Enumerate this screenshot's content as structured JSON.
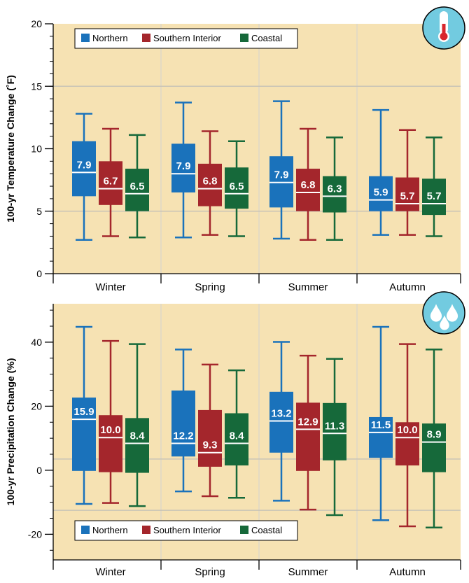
{
  "colors": {
    "northern": "#1a72bb",
    "southern": "#a4262c",
    "coastal": "#16693a",
    "plot_bg": "#f6e2b3",
    "icon_bg": "#72cbe0"
  },
  "icons": [
    "thermometer-icon",
    "raindrops-icon"
  ],
  "chart_data": [
    {
      "type": "box",
      "ylabel": "100-yr Temperature Change (˚F)",
      "ylim": [
        0,
        20
      ],
      "yticks": [
        "0",
        "5",
        "10",
        "15",
        "20"
      ],
      "categories": [
        "Winter",
        "Spring",
        "Summer",
        "Autumn"
      ],
      "legend": {
        "position": "top-left",
        "entries": [
          "Northern",
          "Southern Interior",
          "Coastal"
        ]
      },
      "reference_lines": [
        5,
        15
      ],
      "series": [
        {
          "name": "Northern",
          "boxes": [
            {
              "min": 2.7,
              "q1": 6.2,
              "median": 8.1,
              "q3": 10.6,
              "max": 12.8,
              "label": "7.9"
            },
            {
              "min": 2.9,
              "q1": 6.5,
              "median": 8.0,
              "q3": 10.4,
              "max": 13.7,
              "label": "7.9"
            },
            {
              "min": 2.8,
              "q1": 5.3,
              "median": 7.3,
              "q3": 9.4,
              "max": 13.8,
              "label": "7.9"
            },
            {
              "min": 3.1,
              "q1": 5.0,
              "median": 5.9,
              "q3": 7.8,
              "max": 13.1,
              "label": "5.9"
            }
          ]
        },
        {
          "name": "Southern Interior",
          "boxes": [
            {
              "min": 3.0,
              "q1": 5.5,
              "median": 6.8,
              "q3": 9.0,
              "max": 11.6,
              "label": "6.7"
            },
            {
              "min": 3.1,
              "q1": 5.4,
              "median": 6.8,
              "q3": 8.8,
              "max": 11.4,
              "label": "6.8"
            },
            {
              "min": 2.7,
              "q1": 5.0,
              "median": 6.5,
              "q3": 8.4,
              "max": 11.6,
              "label": "6.8"
            },
            {
              "min": 3.1,
              "q1": 5.0,
              "median": 5.6,
              "q3": 7.7,
              "max": 11.5,
              "label": "5.7"
            }
          ]
        },
        {
          "name": "Coastal",
          "boxes": [
            {
              "min": 2.9,
              "q1": 5.0,
              "median": 6.4,
              "q3": 8.4,
              "max": 11.1,
              "label": "6.5"
            },
            {
              "min": 3.0,
              "q1": 5.2,
              "median": 6.4,
              "q3": 8.5,
              "max": 10.6,
              "label": "6.5"
            },
            {
              "min": 2.7,
              "q1": 4.9,
              "median": 6.2,
              "q3": 7.8,
              "max": 10.9,
              "label": "6.3"
            },
            {
              "min": 3.0,
              "q1": 4.7,
              "median": 5.6,
              "q3": 7.6,
              "max": 10.9,
              "label": "5.7"
            }
          ]
        }
      ]
    },
    {
      "type": "box",
      "ylabel": "100-yr Precipitation Change (%)",
      "ylim": [
        -28,
        52
      ],
      "yticks": [
        "-20",
        "0",
        "20",
        "40"
      ],
      "categories": [
        "Winter",
        "Spring",
        "Summer",
        "Autumn"
      ],
      "legend": {
        "position": "bottom-left",
        "entries": [
          "Northern",
          "Southern Interior",
          "Coastal"
        ]
      },
      "reference_lines": [
        3.5,
        -12.5
      ],
      "series": [
        {
          "name": "Northern",
          "boxes": [
            {
              "min": -10.5,
              "q1": -0.2,
              "median": 15.9,
              "q3": 22.7,
              "max": 44.8,
              "label": "15.9"
            },
            {
              "min": -6.6,
              "q1": 4.3,
              "median": 8.4,
              "q3": 24.9,
              "max": 37.7,
              "label": "12.2"
            },
            {
              "min": -9.5,
              "q1": 5.5,
              "median": 15.4,
              "q3": 24.5,
              "max": 40.1,
              "label": "13.2"
            },
            {
              "min": -15.6,
              "q1": 3.9,
              "median": 11.8,
              "q3": 16.6,
              "max": 44.8,
              "label": "11.5"
            }
          ]
        },
        {
          "name": "Southern Interior",
          "boxes": [
            {
              "min": -10.2,
              "q1": -0.6,
              "median": 10.2,
              "q3": 17.2,
              "max": 40.4,
              "label": "10.0"
            },
            {
              "min": -8.1,
              "q1": 1.1,
              "median": 5.5,
              "q3": 18.8,
              "max": 33.0,
              "label": "9.3"
            },
            {
              "min": -12.3,
              "q1": -0.2,
              "median": 12.8,
              "q3": 21.1,
              "max": 35.8,
              "label": "12.9"
            },
            {
              "min": -17.5,
              "q1": 1.5,
              "median": 10.2,
              "q3": 15.0,
              "max": 39.4,
              "label": "10.0"
            }
          ]
        },
        {
          "name": "Coastal",
          "boxes": [
            {
              "min": -11.2,
              "q1": -0.8,
              "median": 8.4,
              "q3": 16.3,
              "max": 39.4,
              "label": "8.4"
            },
            {
              "min": -8.6,
              "q1": 1.5,
              "median": 8.4,
              "q3": 17.8,
              "max": 31.2,
              "label": "8.4"
            },
            {
              "min": -14.0,
              "q1": 3.1,
              "median": 11.5,
              "q3": 21.0,
              "max": 34.8,
              "label": "11.3"
            },
            {
              "min": -17.9,
              "q1": -0.6,
              "median": 8.8,
              "q3": 14.6,
              "max": 37.7,
              "label": "8.9"
            }
          ]
        }
      ]
    }
  ]
}
